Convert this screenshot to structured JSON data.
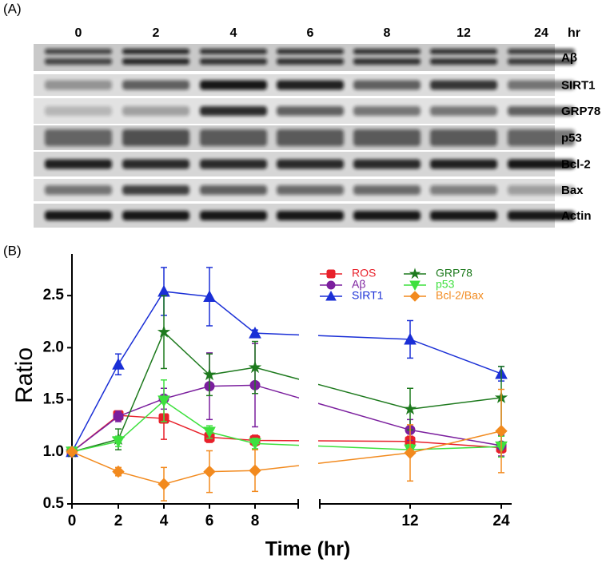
{
  "blot": {
    "label": "(A)",
    "lanes": [
      "0",
      "2",
      "4",
      "6",
      "8",
      "12",
      "24"
    ],
    "unit": "hr",
    "rows": [
      "Aβ",
      "SIRT1",
      "GRP78",
      "p53",
      "Bcl-2",
      "Bax",
      "Actin"
    ]
  },
  "chart_data": {
    "type": "line",
    "title": "(B)",
    "x_label": "Time (hr)",
    "y_label": "Ratio",
    "categories": [
      "0",
      "2",
      "4",
      "6",
      "8",
      "12",
      "24"
    ],
    "ylim": [
      0.5,
      2.9
    ],
    "yticks": [
      {
        "value": 0.5,
        "label": "0.5"
      },
      {
        "value": 1.0,
        "label": "1.0"
      },
      {
        "value": 1.5,
        "label": "1.5"
      },
      {
        "value": 2.0,
        "label": "2.0"
      },
      {
        "value": 2.5,
        "label": "2.5"
      }
    ],
    "axis_break": true,
    "legend": "upper right",
    "series": [
      {
        "name": "ROS",
        "color": "#e8202a",
        "marker": "square",
        "values": [
          1.0,
          1.35,
          1.32,
          1.14,
          1.11,
          1.1,
          1.04
        ],
        "errors": [
          0,
          0.04,
          0.2,
          0.05,
          0.05,
          0.05,
          0.05
        ]
      },
      {
        "name": "Aβ",
        "color": "#7b1f9e",
        "marker": "circle",
        "values": [
          1.0,
          1.34,
          1.51,
          1.63,
          1.64,
          1.21,
          1.06
        ],
        "errors": [
          0,
          0.05,
          0.1,
          0.32,
          0.4,
          0.1,
          0.1
        ]
      },
      {
        "name": "SIRT1",
        "color": "#1a2fd6",
        "marker": "triangle-up",
        "values": [
          1.0,
          1.84,
          2.54,
          2.49,
          2.14,
          2.08,
          1.75
        ],
        "errors": [
          0,
          0.1,
          0.23,
          0.28,
          0.03,
          0.18,
          0.07
        ]
      },
      {
        "name": "GRP78",
        "color": "#1e7a1e",
        "marker": "star",
        "values": [
          1.0,
          1.12,
          2.15,
          1.74,
          1.81,
          1.41,
          1.52
        ],
        "errors": [
          0,
          0.1,
          0.35,
          0.2,
          0.25,
          0.2,
          0.3
        ]
      },
      {
        "name": "p53",
        "color": "#3ee03e",
        "marker": "triangle-down",
        "values": [
          1.0,
          1.1,
          1.49,
          1.19,
          1.08,
          1.02,
          1.05
        ],
        "errors": [
          0,
          0.05,
          0.2,
          0.06,
          0.05,
          0.05,
          0.1
        ]
      },
      {
        "name": "Bcl-2/Bax",
        "color": "#f28a1e",
        "marker": "diamond",
        "values": [
          1.0,
          0.81,
          0.69,
          0.81,
          0.82,
          0.99,
          1.2
        ],
        "errors": [
          0,
          0.04,
          0.16,
          0.2,
          0.2,
          0.27,
          0.4
        ]
      }
    ]
  }
}
